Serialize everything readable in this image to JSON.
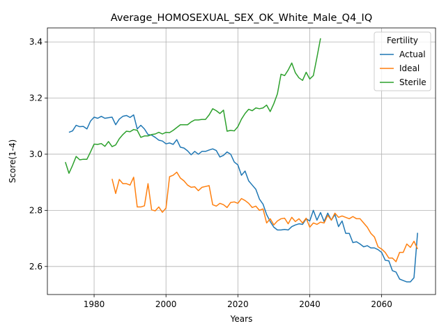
{
  "chart_data": {
    "type": "line",
    "title": "Average_HOMOSEXUAL_SEX_OK_White_Male_Q4_IQ",
    "xlabel": "Years",
    "ylabel": "Score(1-4)",
    "xlim": [
      1967,
      2075
    ],
    "ylim": [
      2.5,
      3.45
    ],
    "xticks": [
      1980,
      2000,
      2020,
      2040,
      2060
    ],
    "yticks": [
      2.6,
      2.8,
      3.0,
      3.2,
      3.4
    ],
    "grid": true,
    "legend": {
      "title": "Fertility",
      "position": "top-right"
    },
    "series": [
      {
        "name": "Actual",
        "color": "#1f77b4",
        "x": [
          1973,
          1974,
          1975,
          1976,
          1977,
          1978,
          1979,
          1980,
          1981,
          1982,
          1983,
          1984,
          1985,
          1986,
          1987,
          1988,
          1989,
          1990,
          1991,
          1992,
          1993,
          1994,
          1995,
          1996,
          1997,
          1998,
          1999,
          2000,
          2001,
          2002,
          2003,
          2004,
          2005,
          2006,
          2007,
          2008,
          2009,
          2010,
          2011,
          2012,
          2013,
          2014,
          2015,
          2016,
          2017,
          2018,
          2019,
          2020,
          2021,
          2022,
          2023,
          2024,
          2025,
          2026,
          2027,
          2028,
          2029,
          2030,
          2031,
          2032,
          2033,
          2034,
          2035,
          2036,
          2037,
          2038,
          2039,
          2040,
          2041,
          2042,
          2043,
          2044,
          2045,
          2046,
          2047,
          2048,
          2049,
          2050,
          2051,
          2052,
          2053,
          2054,
          2055,
          2056,
          2057,
          2058,
          2059,
          2060,
          2061,
          2062,
          2063,
          2064,
          2065,
          2066,
          2067,
          2068,
          2069,
          2070
        ],
        "values": [
          3.078,
          3.083,
          3.103,
          3.098,
          3.099,
          3.09,
          3.118,
          3.132,
          3.128,
          3.135,
          3.128,
          3.13,
          3.132,
          3.105,
          3.125,
          3.135,
          3.138,
          3.131,
          3.14,
          3.09,
          3.103,
          3.09,
          3.07,
          3.068,
          3.06,
          3.05,
          3.047,
          3.037,
          3.04,
          3.035,
          3.052,
          3.025,
          3.022,
          3.012,
          2.998,
          3.01,
          3.0,
          3.01,
          3.01,
          3.015,
          3.019,
          3.013,
          2.99,
          2.996,
          3.008,
          3.0,
          2.972,
          2.962,
          2.925,
          2.94,
          2.905,
          2.89,
          2.875,
          2.84,
          2.822,
          2.785,
          2.76,
          2.74,
          2.73,
          2.73,
          2.732,
          2.73,
          2.742,
          2.748,
          2.752,
          2.75,
          2.77,
          2.762,
          2.8,
          2.765,
          2.792,
          2.76,
          2.79,
          2.765,
          2.785,
          2.742,
          2.762,
          2.718,
          2.718,
          2.685,
          2.688,
          2.68,
          2.67,
          2.674,
          2.666,
          2.666,
          2.66,
          2.65,
          2.622,
          2.62,
          2.585,
          2.58,
          2.555,
          2.55,
          2.545,
          2.545,
          2.56,
          2.72
        ]
      },
      {
        "name": "Ideal",
        "color": "#ff7f0e",
        "x": [
          1985,
          1986,
          1987,
          1988,
          1989,
          1990,
          1991,
          1992,
          1993,
          1994,
          1995,
          1996,
          1997,
          1998,
          1999,
          2000,
          2001,
          2002,
          2003,
          2004,
          2005,
          2006,
          2007,
          2008,
          2009,
          2010,
          2011,
          2012,
          2013,
          2014,
          2015,
          2016,
          2017,
          2018,
          2019,
          2020,
          2021,
          2022,
          2023,
          2024,
          2025,
          2026,
          2027,
          2028,
          2029,
          2030,
          2031,
          2032,
          2033,
          2034,
          2035,
          2036,
          2037,
          2038,
          2039,
          2040,
          2041,
          2042,
          2043,
          2044,
          2045,
          2046,
          2047,
          2048,
          2049,
          2050,
          2051,
          2052,
          2053,
          2054,
          2055,
          2056,
          2057,
          2058,
          2059,
          2060,
          2061,
          2062,
          2063,
          2064,
          2065,
          2066,
          2067,
          2068,
          2069,
          2070
        ],
        "values": [
          2.912,
          2.86,
          2.91,
          2.895,
          2.895,
          2.89,
          2.918,
          2.812,
          2.812,
          2.816,
          2.895,
          2.802,
          2.798,
          2.812,
          2.793,
          2.808,
          2.92,
          2.925,
          2.936,
          2.915,
          2.905,
          2.89,
          2.882,
          2.884,
          2.87,
          2.882,
          2.885,
          2.888,
          2.82,
          2.815,
          2.825,
          2.82,
          2.81,
          2.828,
          2.83,
          2.825,
          2.842,
          2.835,
          2.825,
          2.81,
          2.815,
          2.8,
          2.805,
          2.755,
          2.77,
          2.748,
          2.762,
          2.77,
          2.772,
          2.752,
          2.775,
          2.76,
          2.77,
          2.755,
          2.772,
          2.74,
          2.755,
          2.75,
          2.758,
          2.755,
          2.782,
          2.765,
          2.79,
          2.775,
          2.78,
          2.775,
          2.77,
          2.778,
          2.77,
          2.77,
          2.755,
          2.74,
          2.718,
          2.705,
          2.67,
          2.662,
          2.65,
          2.63,
          2.63,
          2.617,
          2.65,
          2.65,
          2.68,
          2.668,
          2.69,
          2.662
        ]
      },
      {
        "name": "Sterile",
        "color": "#2ca02c",
        "x": [
          1972,
          1973,
          1974,
          1975,
          1976,
          1977,
          1978,
          1979,
          1980,
          1981,
          1982,
          1983,
          1984,
          1985,
          1986,
          1987,
          1988,
          1989,
          1990,
          1991,
          1992,
          1993,
          1994,
          1995,
          1996,
          1997,
          1998,
          1999,
          2000,
          2001,
          2002,
          2003,
          2004,
          2005,
          2006,
          2007,
          2008,
          2009,
          2010,
          2011,
          2012,
          2013,
          2014,
          2015,
          2016,
          2017,
          2018,
          2019,
          2020,
          2021,
          2022,
          2023,
          2024,
          2025,
          2026,
          2027,
          2028,
          2029,
          2030,
          2031,
          2032,
          2033,
          2034,
          2035,
          2036,
          2037,
          2038,
          2039,
          2040,
          2041,
          2042,
          2043
        ],
        "values": [
          2.972,
          2.932,
          2.96,
          2.992,
          2.98,
          2.982,
          2.982,
          3.008,
          3.036,
          3.035,
          3.038,
          3.028,
          3.045,
          3.027,
          3.033,
          3.055,
          3.07,
          3.082,
          3.08,
          3.088,
          3.085,
          3.06,
          3.065,
          3.065,
          3.07,
          3.072,
          3.078,
          3.072,
          3.078,
          3.077,
          3.085,
          3.095,
          3.105,
          3.105,
          3.105,
          3.115,
          3.122,
          3.122,
          3.124,
          3.124,
          3.14,
          3.162,
          3.155,
          3.145,
          3.157,
          3.082,
          3.085,
          3.083,
          3.098,
          3.125,
          3.145,
          3.16,
          3.155,
          3.165,
          3.162,
          3.165,
          3.175,
          3.152,
          3.18,
          3.215,
          3.285,
          3.28,
          3.3,
          3.325,
          3.29,
          3.272,
          3.263,
          3.292,
          3.268,
          3.28,
          3.345,
          3.413
        ]
      }
    ]
  }
}
